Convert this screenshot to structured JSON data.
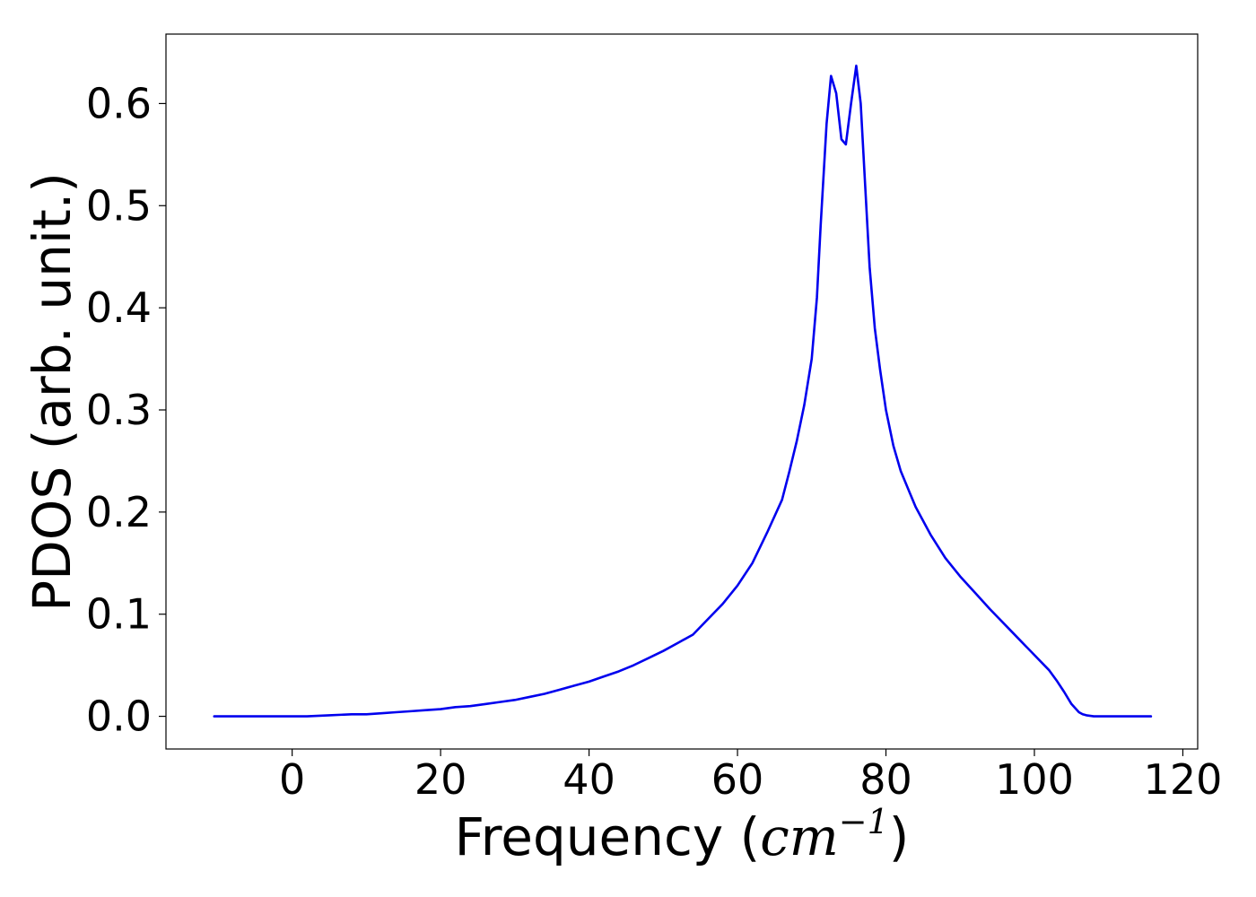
{
  "chart_data": {
    "type": "line",
    "title": "",
    "xlabel": {
      "prefix": "Frequency (",
      "math": "cm",
      "superscript": "−1",
      "suffix": ")"
    },
    "ylabel": "PDOS (arb. unit.)",
    "xlim": [
      -17,
      122
    ],
    "ylim": [
      -0.032,
      0.668
    ],
    "x_ticks": [
      0,
      20,
      40,
      60,
      80,
      100,
      120
    ],
    "x_tick_labels": [
      "0",
      "20",
      "40",
      "60",
      "80",
      "100",
      "120"
    ],
    "y_ticks": [
      0.0,
      0.1,
      0.2,
      0.3,
      0.4,
      0.5,
      0.6
    ],
    "y_tick_labels": [
      "0.0",
      "0.1",
      "0.2",
      "0.3",
      "0.4",
      "0.5",
      "0.6"
    ],
    "grid": false,
    "legend": "none",
    "series": [
      {
        "color": "#0000ee",
        "x": [
          -10.5,
          0,
          2,
          5,
          8,
          10,
          12,
          14,
          16,
          18,
          20,
          22,
          24,
          26,
          28,
          30,
          32,
          34,
          36,
          38,
          40,
          42,
          44,
          46,
          48,
          50,
          52,
          54,
          56,
          58,
          60,
          62,
          64,
          66,
          67,
          68,
          69,
          70,
          70.7,
          71.2,
          72.0,
          72.6,
          73.3,
          74.0,
          74.6,
          75.3,
          76.0,
          76.6,
          77.2,
          77.8,
          78.5,
          79.2,
          80,
          81,
          82,
          84,
          86,
          88,
          90,
          92,
          94,
          96,
          98,
          100,
          102,
          103,
          104,
          105,
          106,
          106.5,
          107,
          108,
          110,
          112,
          115.7
        ],
        "y": [
          0.0,
          0.0,
          0.0,
          0.001,
          0.002,
          0.002,
          0.003,
          0.004,
          0.005,
          0.006,
          0.007,
          0.009,
          0.01,
          0.012,
          0.014,
          0.016,
          0.019,
          0.022,
          0.026,
          0.03,
          0.034,
          0.039,
          0.044,
          0.05,
          0.057,
          0.064,
          0.072,
          0.08,
          0.095,
          0.11,
          0.128,
          0.15,
          0.18,
          0.212,
          0.24,
          0.27,
          0.305,
          0.35,
          0.41,
          0.48,
          0.58,
          0.627,
          0.61,
          0.565,
          0.56,
          0.6,
          0.637,
          0.6,
          0.52,
          0.44,
          0.38,
          0.34,
          0.3,
          0.265,
          0.24,
          0.205,
          0.178,
          0.155,
          0.137,
          0.121,
          0.105,
          0.09,
          0.075,
          0.06,
          0.045,
          0.035,
          0.024,
          0.012,
          0.004,
          0.002,
          0.001,
          0.0,
          0.0,
          0.0,
          0.0
        ]
      }
    ]
  }
}
